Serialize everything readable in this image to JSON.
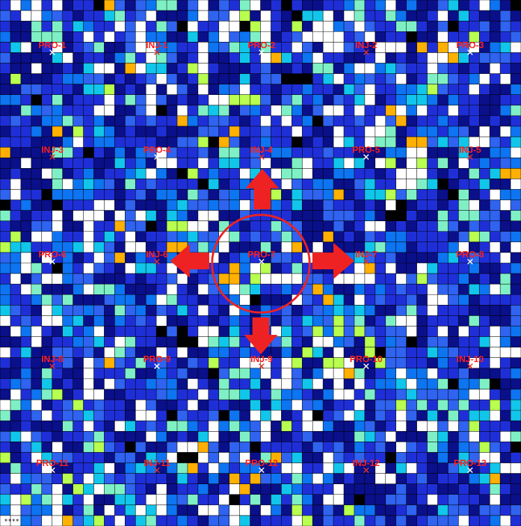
{
  "grid": {
    "cols": 50,
    "rows": 50,
    "seed": 7,
    "line_color": "#000000"
  },
  "palette": [
    "#1f2fd8",
    "#0a0f8a",
    "#2f63f0",
    "#0d74f2",
    "#11c6ea",
    "#7ff0c5",
    "#ffffff",
    "#b8ff50",
    "#ffb000",
    "#000000"
  ],
  "palette_weights": [
    0.24,
    0.22,
    0.12,
    0.1,
    0.05,
    0.05,
    0.16,
    0.02,
    0.02,
    0.02
  ],
  "colors": {
    "label": "#ff1f1f",
    "marker_injector": "#e03030",
    "marker_producer": "#ffffff",
    "arrow": "#ee2222",
    "circle": "#ee2222"
  },
  "wells": [
    {
      "name": "PRO-1",
      "type": "producer"
    },
    {
      "name": "INJ-1",
      "type": "injector"
    },
    {
      "name": "PRO-2",
      "type": "producer"
    },
    {
      "name": "INJ-2",
      "type": "injector"
    },
    {
      "name": "PRO-3",
      "type": "producer"
    },
    {
      "name": "INJ-3",
      "type": "injector"
    },
    {
      "name": "PRO-4",
      "type": "producer"
    },
    {
      "name": "INJ-4",
      "type": "injector"
    },
    {
      "name": "PRO-5",
      "type": "producer"
    },
    {
      "name": "INJ-5",
      "type": "injector"
    },
    {
      "name": "PRO-6",
      "type": "producer"
    },
    {
      "name": "INJ-6",
      "type": "injector"
    },
    {
      "name": "PRO-7",
      "type": "producer"
    },
    {
      "name": "INJ-7",
      "type": "injector"
    },
    {
      "name": "PRO-8",
      "type": "producer"
    },
    {
      "name": "INJ-8",
      "type": "injector"
    },
    {
      "name": "PRO-9",
      "type": "producer"
    },
    {
      "name": "INJ-9",
      "type": "injector"
    },
    {
      "name": "PRO-10",
      "type": "producer"
    },
    {
      "name": "INJ-10",
      "type": "injector"
    },
    {
      "name": "PRO-11",
      "type": "producer"
    },
    {
      "name": "INJ-11",
      "type": "injector"
    },
    {
      "name": "PRO-12",
      "type": "producer"
    },
    {
      "name": "INJ-12",
      "type": "injector"
    },
    {
      "name": "PRO-13",
      "type": "producer"
    }
  ],
  "highlight": {
    "center_well": "PRO-7",
    "arrows": [
      "up",
      "left",
      "right",
      "down"
    ]
  },
  "corner_text": "****"
}
